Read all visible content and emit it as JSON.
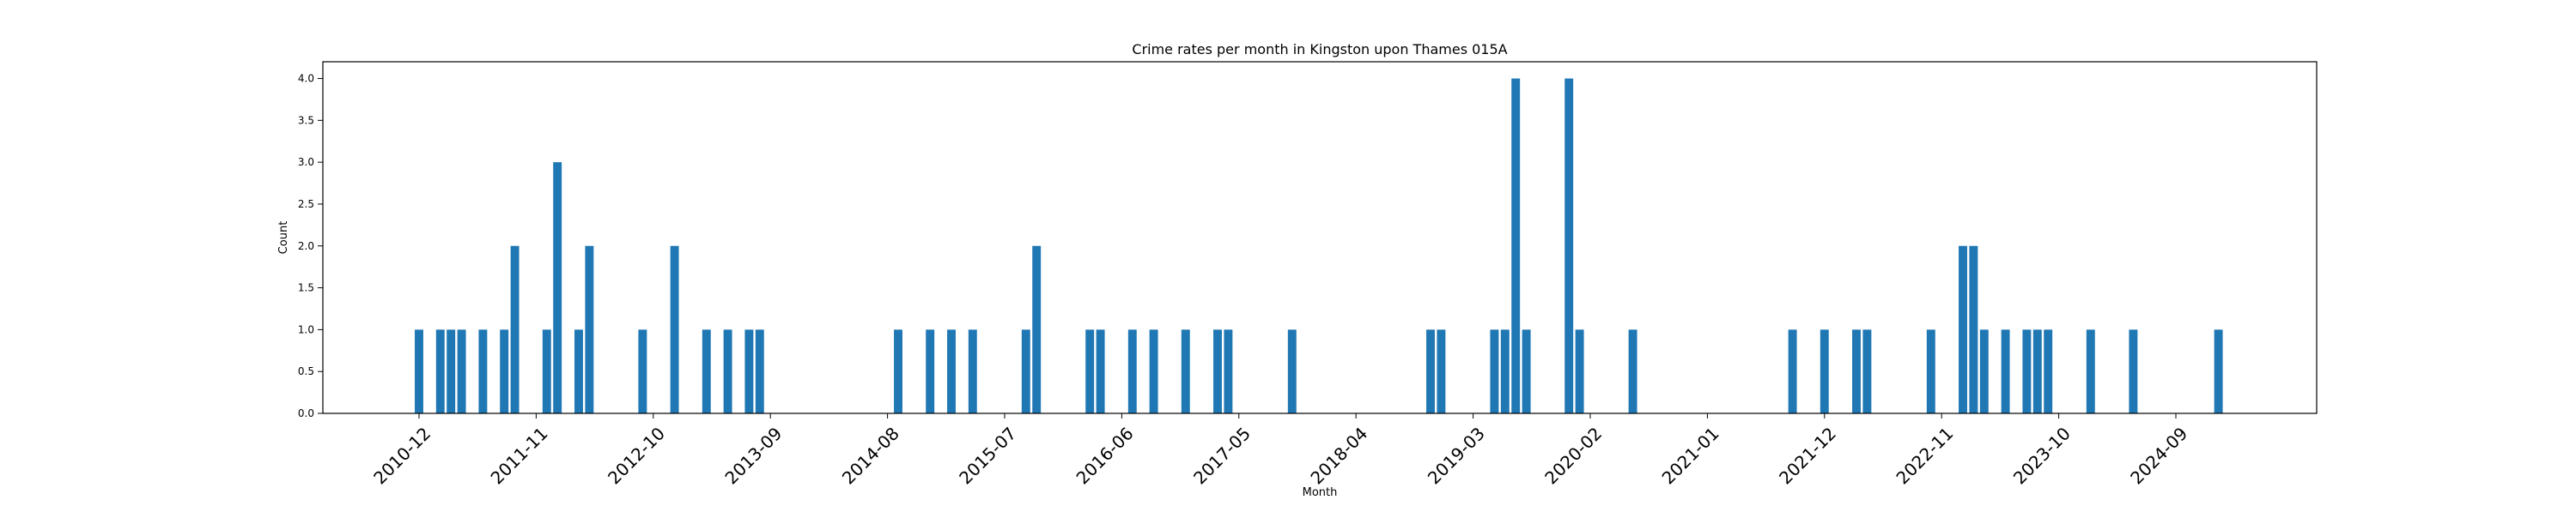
{
  "chart_data": {
    "type": "bar",
    "title": "Crime rates per month in Kingston upon Thames 015A",
    "xlabel": "Month",
    "ylabel": "Count",
    "ylim": [
      0,
      4.2
    ],
    "yticks": [
      "0.0",
      "0.5",
      "1.0",
      "1.5",
      "2.0",
      "2.5",
      "3.0",
      "3.5",
      "4.0"
    ],
    "xticks": [
      "2010-12",
      "2011-11",
      "2012-10",
      "2013-09",
      "2014-08",
      "2015-07",
      "2016-06",
      "2017-05",
      "2018-04",
      "2019-03",
      "2020-02",
      "2021-01",
      "2021-12",
      "2022-11",
      "2023-10",
      "2024-09"
    ],
    "bar_color": "#1f77b4",
    "grid": false,
    "categories": [
      "2010-12",
      "2011-02",
      "2011-03",
      "2011-04",
      "2011-06",
      "2011-08",
      "2011-09",
      "2011-12",
      "2012-01",
      "2012-03",
      "2012-04",
      "2012-09",
      "2012-12",
      "2013-03",
      "2013-05",
      "2013-07",
      "2013-08",
      "2014-09",
      "2014-12",
      "2015-02",
      "2015-04",
      "2015-09",
      "2015-10",
      "2016-03",
      "2016-04",
      "2016-07",
      "2016-09",
      "2016-12",
      "2017-03",
      "2017-04",
      "2017-10",
      "2018-11",
      "2018-12",
      "2019-05",
      "2019-06",
      "2019-07",
      "2019-08",
      "2019-12",
      "2020-01",
      "2020-06",
      "2021-09",
      "2021-12",
      "2022-03",
      "2022-04",
      "2022-10",
      "2023-01",
      "2023-02",
      "2023-03",
      "2023-05",
      "2023-07",
      "2023-08",
      "2023-09",
      "2024-01",
      "2024-05",
      "2025-01"
    ],
    "values": [
      1,
      1,
      1,
      1,
      1,
      1,
      2,
      1,
      3,
      1,
      2,
      1,
      2,
      1,
      1,
      1,
      1,
      1,
      1,
      1,
      1,
      1,
      2,
      1,
      1,
      1,
      1,
      1,
      1,
      1,
      1,
      1,
      1,
      1,
      1,
      4,
      1,
      4,
      1,
      1,
      1,
      1,
      1,
      1,
      1,
      2,
      2,
      1,
      1,
      1,
      1,
      1,
      1,
      1,
      1
    ]
  }
}
